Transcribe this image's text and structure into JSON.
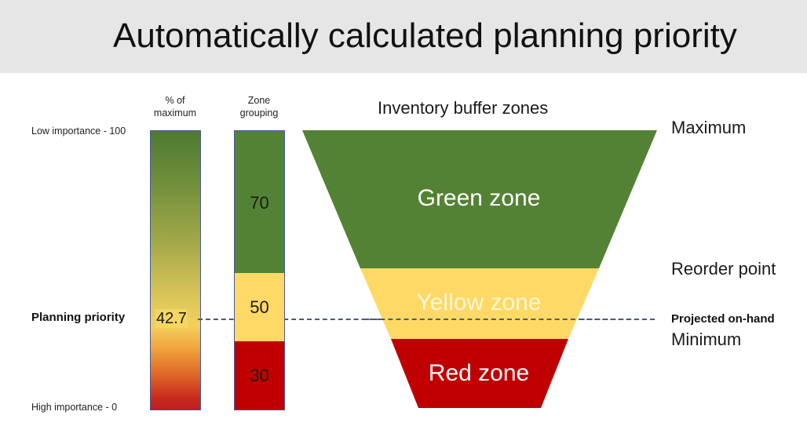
{
  "title": "Automatically calculated planning priority",
  "columns": {
    "percent_header": [
      "% of",
      "maximum"
    ],
    "zone_header": [
      "Zone",
      "grouping"
    ]
  },
  "scale": {
    "top_label": "Low importance - 100",
    "bottom_label": "High importance - 0",
    "priority_label": "Planning priority",
    "priority_value": "42.7"
  },
  "zone_grouping": [
    {
      "value": "70",
      "color": "#548235"
    },
    {
      "value": "50",
      "color": "#ffd966"
    },
    {
      "value": "30",
      "color": "#c00000"
    }
  ],
  "funnel": {
    "heading": "Inventory buffer zones",
    "zones": [
      {
        "label": "Green zone",
        "color": "#548235"
      },
      {
        "label": "Yellow zone",
        "color": "#ffd966"
      },
      {
        "label": "Red zone",
        "color": "#c00000"
      }
    ]
  },
  "levels": {
    "maximum": "Maximum",
    "reorder_point": "Reorder point",
    "projected_on_hand": "Projected on-hand",
    "minimum": "Minimum"
  },
  "colors": {
    "title_band": "#e6e6e6",
    "bar_border": "#4a5a9a",
    "dash_line": "#4d5a78"
  }
}
